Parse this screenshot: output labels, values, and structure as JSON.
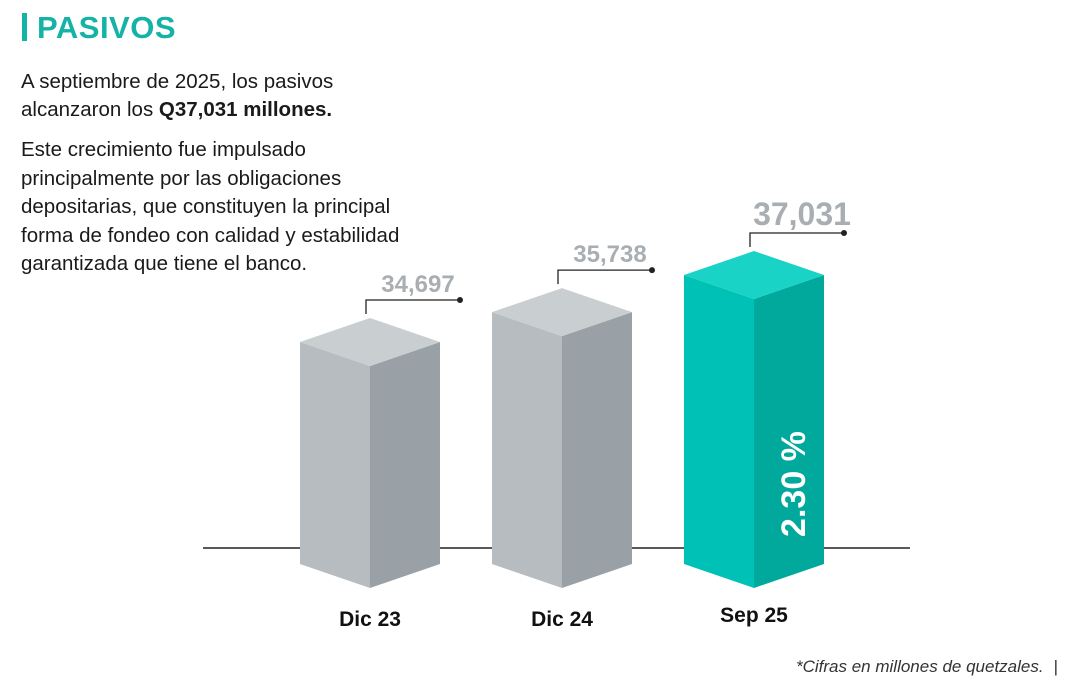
{
  "page": {
    "title": "PASIVOS",
    "intro_prefix": "A septiembre de 2025, los pasivos alcanzaron los ",
    "intro_bold": "Q37,031 millones.",
    "description": "Este crecimiento fue impulsado principalmente por las obligaciones depositarias, que constituyen la principal forma de fondeo con calidad y estabilidad garantizada que tiene el banco.",
    "footnote": "*Cifras en millones de quetzales.",
    "footnote_sep": "|"
  },
  "colors": {
    "accent": "#14b3a6",
    "gray_front": "#b6bcc0",
    "gray_side": "#9aa1a6",
    "gray_top": "#c9ced1",
    "teal_front": "#00c1b5",
    "teal_side": "#00a99c",
    "teal_top": "#19d3c6",
    "label_gray": "#a9aeb2"
  },
  "chart_data": {
    "type": "bar",
    "categories": [
      "Dic 23",
      "Dic 24",
      "Sep 25"
    ],
    "values": [
      34697,
      35738,
      37031
    ],
    "value_labels": [
      "34,697",
      "35,738",
      "37,031"
    ],
    "highlight_index": 2,
    "annotation": "2.30 %",
    "title": "",
    "xlabel": "",
    "ylabel": ""
  }
}
